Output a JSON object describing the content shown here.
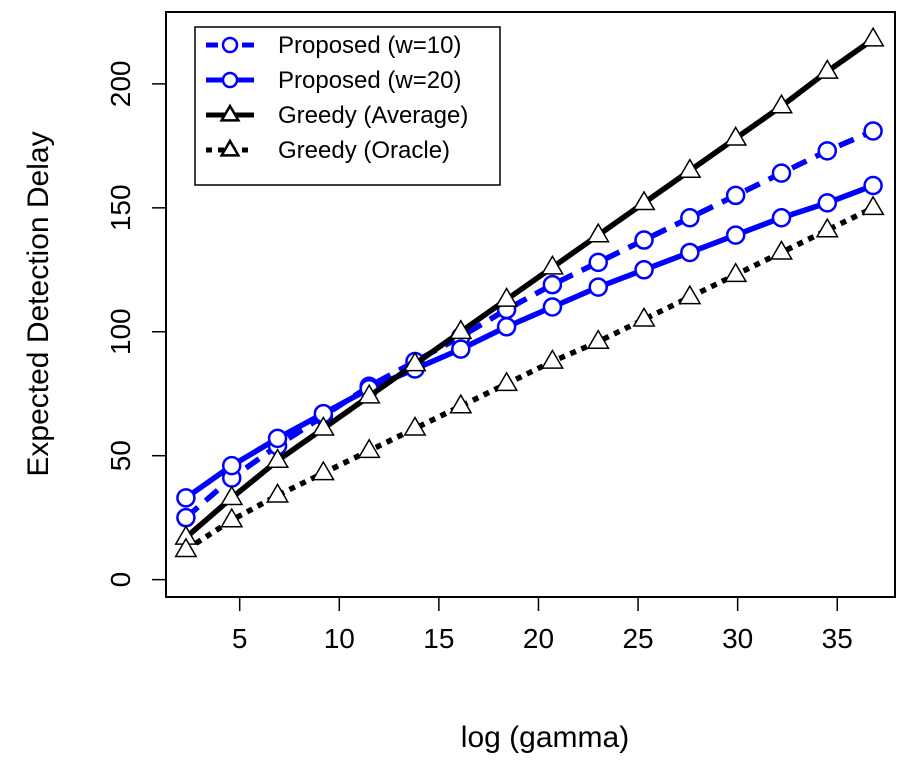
{
  "chart_data": {
    "type": "line",
    "xlabel": "log (gamma)",
    "ylabel": "Expected Detection Delay",
    "xlim": [
      1.3,
      37.9
    ],
    "ylim": [
      -7,
      229
    ],
    "xticks": [
      5,
      10,
      15,
      20,
      25,
      30,
      35
    ],
    "yticks": [
      0,
      50,
      100,
      150,
      200
    ],
    "grid": false,
    "legend_position": "top-left",
    "x": [
      2.3,
      4.6,
      6.9,
      9.2,
      11.5,
      13.8,
      16.1,
      18.4,
      20.7,
      23.0,
      25.3,
      27.6,
      29.9,
      32.2,
      34.5,
      36.8
    ],
    "series": [
      {
        "name": "Proposed (w=10)",
        "color": "#0000ff",
        "line_style": "dashed",
        "marker": "circle",
        "values": [
          25,
          41,
          54,
          66,
          78,
          88,
          98,
          109,
          119,
          128,
          137,
          146,
          155,
          164,
          173,
          181
        ]
      },
      {
        "name": "Proposed (w=20)",
        "color": "#0000ff",
        "line_style": "solid",
        "marker": "circle",
        "values": [
          33,
          46,
          57,
          67,
          77,
          85,
          93,
          102,
          110,
          118,
          125,
          132,
          139,
          146,
          152,
          159
        ]
      },
      {
        "name": "Greedy (Average)",
        "color": "#000000",
        "line_style": "solid",
        "marker": "triangle",
        "values": [
          17,
          33,
          48,
          61,
          74,
          87,
          100,
          113,
          126,
          139,
          152,
          165,
          178,
          191,
          205,
          218
        ]
      },
      {
        "name": "Greedy (Oracle)",
        "color": "#000000",
        "line_style": "dotted",
        "marker": "triangle",
        "values": [
          12,
          24,
          34,
          43,
          52,
          61,
          70,
          79,
          88,
          96,
          105,
          114,
          123,
          132,
          141,
          150
        ]
      }
    ]
  }
}
